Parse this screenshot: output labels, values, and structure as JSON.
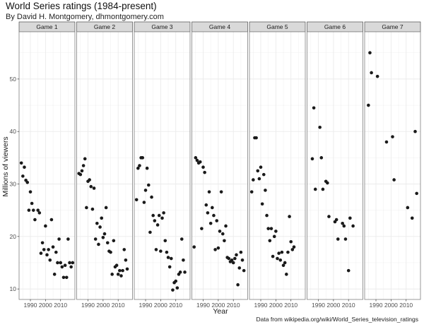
{
  "header": {
    "title": "World Series ratings (1984-present)",
    "subtitle": "By David H. Montgomery, dhmontgomery.com",
    "caption": "Data from wikipedia.org/wiki/World_Series_television_ratings"
  },
  "colors": {
    "panel_bg": "#ffffff",
    "strip_bg": "#d9d9d9",
    "grid": "#ebebeb",
    "point": "#1a1a1a",
    "border": "#7f7f7f"
  },
  "chart_data": {
    "type": "scatter",
    "facet_by": "Game",
    "xlabel": "Year",
    "ylabel": "Millions of viewers",
    "xlim": [
      1982.5,
      2019.5
    ],
    "ylim": [
      8,
      59
    ],
    "x_ticks": [
      1990,
      2000,
      2010
    ],
    "x_tick_labels": [
      "1990",
      "2000",
      "2010"
    ],
    "y_ticks": [
      10,
      20,
      30,
      40,
      50
    ],
    "y_tick_labels": [
      "10",
      "20",
      "30",
      "40",
      "50"
    ],
    "grid": true,
    "legend": "none",
    "panels": [
      {
        "name": "Game 1",
        "points": [
          [
            1984,
            34.0
          ],
          [
            1985,
            31.5
          ],
          [
            1986,
            33.2
          ],
          [
            1987,
            30.7
          ],
          [
            1988,
            30.3
          ],
          [
            1989,
            25.0
          ],
          [
            1990,
            28.5
          ],
          [
            1991,
            26.3
          ],
          [
            1992,
            25.0
          ],
          [
            1993,
            23.2
          ],
          [
            1995,
            25.0
          ],
          [
            1996,
            24.5
          ],
          [
            1997,
            16.8
          ],
          [
            1998,
            18.8
          ],
          [
            1999,
            17.5
          ],
          [
            2000,
            22.0
          ],
          [
            2001,
            16.5
          ],
          [
            2002,
            17.5
          ],
          [
            2003,
            15.5
          ],
          [
            2004,
            23.2
          ],
          [
            2005,
            18.0
          ],
          [
            2006,
            12.8
          ],
          [
            2007,
            17.0
          ],
          [
            2008,
            15.0
          ],
          [
            2009,
            19.5
          ],
          [
            2010,
            15.0
          ],
          [
            2011,
            14.2
          ],
          [
            2012,
            12.2
          ],
          [
            2013,
            14.5
          ],
          [
            2014,
            12.2
          ],
          [
            2015,
            19.5
          ],
          [
            2016,
            15.0
          ],
          [
            2017,
            14.2
          ],
          [
            2018,
            15.0
          ]
        ]
      },
      {
        "name": "Game 2",
        "points": [
          [
            1984,
            32.0
          ],
          [
            1985,
            31.8
          ],
          [
            1986,
            32.5
          ],
          [
            1987,
            33.5
          ],
          [
            1988,
            34.8
          ],
          [
            1989,
            25.5
          ],
          [
            1990,
            30.5
          ],
          [
            1991,
            30.8
          ],
          [
            1992,
            29.5
          ],
          [
            1993,
            25.2
          ],
          [
            1994,
            29.2
          ],
          [
            1995,
            19.5
          ],
          [
            1996,
            22.5
          ],
          [
            1997,
            18.5
          ],
          [
            1998,
            21.8
          ],
          [
            1999,
            23.5
          ],
          [
            2000,
            19.8
          ],
          [
            2001,
            20.5
          ],
          [
            2002,
            25.5
          ],
          [
            2003,
            18.8
          ],
          [
            2004,
            17.2
          ],
          [
            2005,
            17.0
          ],
          [
            2006,
            12.8
          ],
          [
            2007,
            19.2
          ],
          [
            2008,
            14.2
          ],
          [
            2009,
            14.5
          ],
          [
            2010,
            12.8
          ],
          [
            2011,
            13.5
          ],
          [
            2012,
            12.5
          ],
          [
            2013,
            13.5
          ],
          [
            2014,
            17.5
          ],
          [
            2015,
            15.5
          ],
          [
            2016,
            13.8
          ]
        ]
      },
      {
        "name": "Game 3",
        "points": [
          [
            1984,
            27.0
          ],
          [
            1985,
            33.0
          ],
          [
            1986,
            33.5
          ],
          [
            1987,
            35.0
          ],
          [
            1988,
            35.0
          ],
          [
            1989,
            26.5
          ],
          [
            1990,
            28.8
          ],
          [
            1991,
            33.0
          ],
          [
            1992,
            29.8
          ],
          [
            1993,
            20.8
          ],
          [
            1994,
            27.5
          ],
          [
            1995,
            24.0
          ],
          [
            1996,
            23.0
          ],
          [
            1997,
            17.5
          ],
          [
            1998,
            22.2
          ],
          [
            1999,
            24.0
          ],
          [
            2000,
            17.2
          ],
          [
            2001,
            23.5
          ],
          [
            2002,
            24.5
          ],
          [
            2003,
            19.2
          ],
          [
            2004,
            17.0
          ],
          [
            2005,
            16.0
          ],
          [
            2006,
            14.2
          ],
          [
            2007,
            15.8
          ],
          [
            2008,
            9.8
          ],
          [
            2009,
            11.2
          ],
          [
            2010,
            11.5
          ],
          [
            2011,
            10.2
          ],
          [
            2012,
            12.8
          ],
          [
            2013,
            13.2
          ],
          [
            2014,
            19.5
          ],
          [
            2015,
            15.5
          ],
          [
            2016,
            13.2
          ]
        ]
      },
      {
        "name": "Game 4",
        "points": [
          [
            1984,
            18.0
          ],
          [
            1985,
            35.0
          ],
          [
            1986,
            34.5
          ],
          [
            1987,
            34.0
          ],
          [
            1988,
            34.2
          ],
          [
            1989,
            21.5
          ],
          [
            1990,
            33.2
          ],
          [
            1991,
            32.2
          ],
          [
            1992,
            26.0
          ],
          [
            1993,
            24.5
          ],
          [
            1994,
            28.5
          ],
          [
            1995,
            22.5
          ],
          [
            1996,
            25.5
          ],
          [
            1997,
            24.0
          ],
          [
            1998,
            17.5
          ],
          [
            1999,
            23.0
          ],
          [
            2000,
            17.8
          ],
          [
            2001,
            21.0
          ],
          [
            2002,
            28.5
          ],
          [
            2003,
            20.5
          ],
          [
            2004,
            19.2
          ],
          [
            2005,
            22.0
          ],
          [
            2006,
            16.0
          ],
          [
            2007,
            15.8
          ],
          [
            2008,
            15.2
          ],
          [
            2009,
            15.5
          ],
          [
            2010,
            15.0
          ],
          [
            2011,
            15.8
          ],
          [
            2012,
            16.5
          ],
          [
            2013,
            10.8
          ],
          [
            2014,
            14.0
          ],
          [
            2015,
            17.0
          ],
          [
            2016,
            15.5
          ],
          [
            2017,
            13.5
          ]
        ]
      },
      {
        "name": "Game 5",
        "points": [
          [
            1984,
            28.5
          ],
          [
            1985,
            30.8
          ],
          [
            1986,
            38.8
          ],
          [
            1987,
            38.8
          ],
          [
            1988,
            32.5
          ],
          [
            1989,
            31.0
          ],
          [
            1990,
            33.2
          ],
          [
            1991,
            26.2
          ],
          [
            1992,
            31.8
          ],
          [
            1993,
            28.8
          ],
          [
            1994,
            24.0
          ],
          [
            1995,
            21.5
          ],
          [
            1996,
            19.2
          ],
          [
            1997,
            21.5
          ],
          [
            1998,
            16.2
          ],
          [
            1999,
            20.0
          ],
          [
            2000,
            21.0
          ],
          [
            2001,
            15.8
          ],
          [
            2002,
            16.8
          ],
          [
            2003,
            15.5
          ],
          [
            2004,
            17.0
          ],
          [
            2005,
            14.5
          ],
          [
            2006,
            15.0
          ],
          [
            2007,
            12.8
          ],
          [
            2008,
            17.0
          ],
          [
            2009,
            23.8
          ],
          [
            2010,
            19.0
          ],
          [
            2011,
            17.5
          ],
          [
            2012,
            18.0
          ]
        ]
      },
      {
        "name": "Game 6",
        "points": [
          [
            1986,
            34.8
          ],
          [
            1987,
            44.5
          ],
          [
            1988,
            29.0
          ],
          [
            1991,
            40.8
          ],
          [
            1992,
            35.0
          ],
          [
            1993,
            29.0
          ],
          [
            1995,
            30.5
          ],
          [
            1996,
            30.2
          ],
          [
            1997,
            23.8
          ],
          [
            2001,
            22.8
          ],
          [
            2002,
            23.2
          ],
          [
            2003,
            19.5
          ],
          [
            2006,
            22.5
          ],
          [
            2007,
            22.0
          ],
          [
            2008,
            19.5
          ],
          [
            2010,
            13.5
          ],
          [
            2011,
            23.5
          ],
          [
            2013,
            22.0
          ]
        ]
      },
      {
        "name": "Game 7",
        "points": [
          [
            1985,
            45.0
          ],
          [
            1986,
            55.0
          ],
          [
            1987,
            51.2
          ],
          [
            1991,
            50.5
          ],
          [
            1997,
            38.0
          ],
          [
            2001,
            39.0
          ],
          [
            2002,
            30.8
          ],
          [
            2011,
            25.5
          ],
          [
            2014,
            23.5
          ],
          [
            2016,
            40.0
          ],
          [
            2017,
            28.2
          ]
        ]
      }
    ]
  }
}
